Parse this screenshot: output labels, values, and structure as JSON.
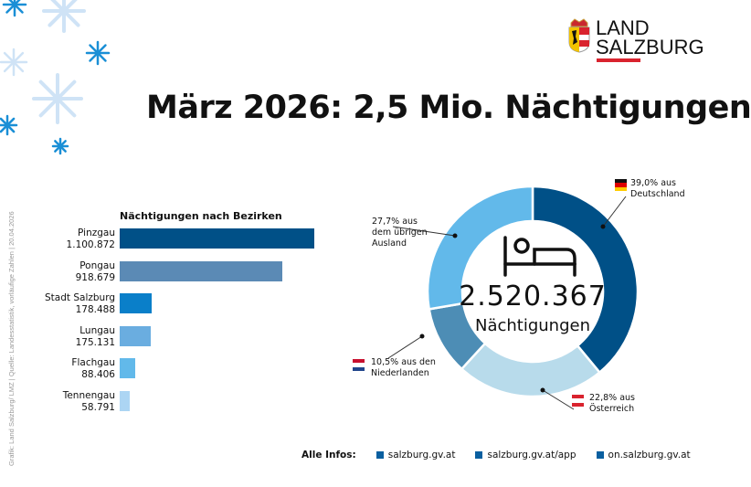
{
  "header": {
    "title": "März 2026: 2,5 Mio. Nächtigungen",
    "logo_text": [
      "LAND",
      "SALZBURG"
    ]
  },
  "source": "Grafik: Land Salzburg/ LMZ | Quelle: Landesstatistik, vorläufige Zahlen | 20.04.2026",
  "colors": {
    "accent_red": "#d9232e",
    "dark_blue": "#005087"
  },
  "chart_data": [
    {
      "type": "bar",
      "orientation": "horizontal",
      "title": "Nächtigungen nach Bezirken",
      "categories": [
        "Pinzgau",
        "Pongau",
        "Stadt Salzburg",
        "Lungau",
        "Flachgau",
        "Tennengau"
      ],
      "values": [
        1100872,
        918679,
        178488,
        175131,
        88406,
        58791
      ],
      "value_labels": [
        "1.100.872",
        "918.679",
        "178.488",
        "175.131",
        "88.406",
        "58.791"
      ],
      "colors": [
        "#005087",
        "#5b8ab5",
        "#0a7fc9",
        "#6aade0",
        "#62b9ea",
        "#acd5f3"
      ]
    },
    {
      "type": "pie",
      "subtype": "donut",
      "center_value": "2.520.367",
      "center_label": "Nächtigungen",
      "center_icon": "bed-icon",
      "slices": [
        {
          "label": "39,0% aus Deutschland",
          "value": 39.0,
          "color": "#005087",
          "flag": "germany-flag-icon"
        },
        {
          "label": "22,8% aus Österreich",
          "value": 22.8,
          "color": "#b8dbeb",
          "flag": "austria-flag-icon"
        },
        {
          "label": "10,5% aus den Niederlanden",
          "value": 10.5,
          "color": "#4d8db5",
          "flag": "netherlands-flag-icon"
        },
        {
          "label": "27,7% aus dem übrigen Ausland",
          "value": 27.7,
          "color": "#62b9ea"
        }
      ],
      "annotations": {
        "de": [
          "39,0% aus",
          "Deutschland"
        ],
        "at": [
          "22,8% aus",
          "Österreich"
        ],
        "nl": [
          "10,5% aus den",
          "Niederlanden"
        ],
        "other": [
          "27,7% aus",
          "dem übrigen",
          "Ausland"
        ]
      }
    }
  ],
  "footer": {
    "label": "Alle Infos:",
    "links": [
      "salzburg.gv.at",
      "salzburg.gv.at/app",
      "on.salzburg.gv.at"
    ]
  }
}
